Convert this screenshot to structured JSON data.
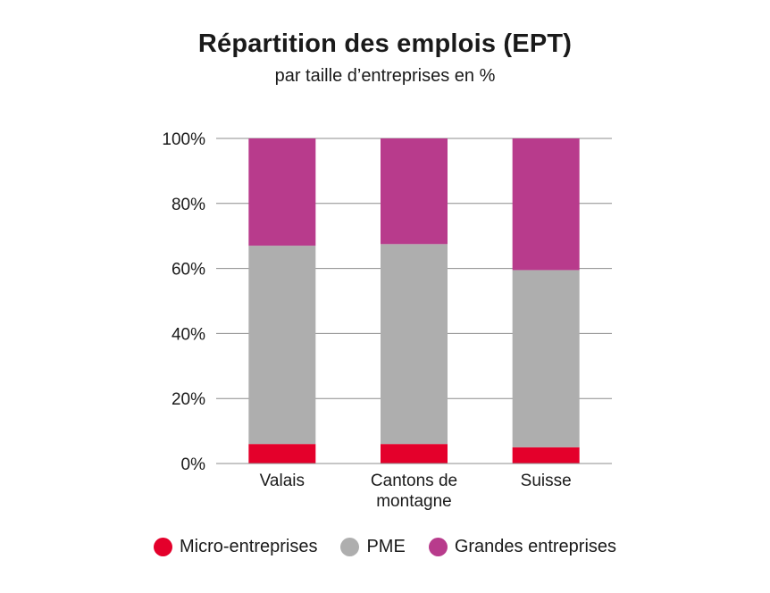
{
  "chart_data": {
    "type": "bar",
    "stacked": true,
    "title": "Répartition des emplois (EPT)",
    "subtitle": "par taille d’entreprises en %",
    "categories": [
      [
        "Valais"
      ],
      [
        "Cantons de",
        "montagne"
      ],
      [
        "Suisse"
      ]
    ],
    "series": [
      {
        "name": "Micro-entreprises",
        "color": "#e4002b",
        "values": [
          6,
          6,
          5
        ]
      },
      {
        "name": "PME",
        "color": "#aeaeae",
        "values": [
          61,
          61.5,
          54.5
        ]
      },
      {
        "name": "Grandes entreprises",
        "color": "#b83b8c",
        "values": [
          33,
          32.5,
          40.5
        ]
      }
    ],
    "ylim": [
      0,
      100
    ],
    "yticks": [
      "0%",
      "20%",
      "40%",
      "60%",
      "80%",
      "100%"
    ],
    "grid": true,
    "legend_position": "bottom"
  }
}
